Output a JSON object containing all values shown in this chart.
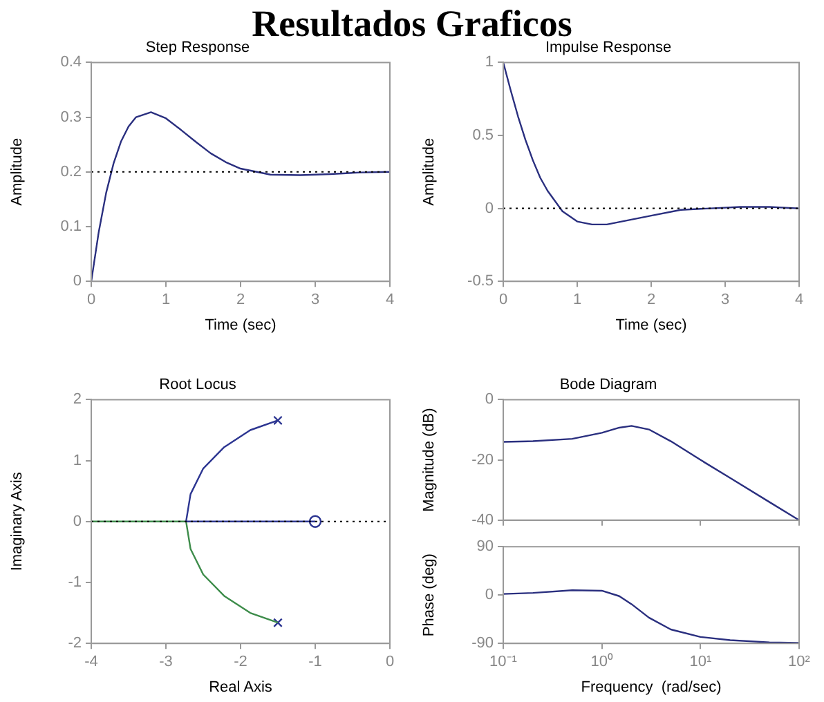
{
  "chart_data": [
    {
      "type": "line",
      "title": "Step Response",
      "xlabel": "Time (sec)",
      "ylabel": "Amplitude",
      "annotations": [
        "Resultados Graficos"
      ],
      "xlim": [
        0,
        4
      ],
      "xticks": [
        0,
        1,
        2,
        3,
        4
      ],
      "ylim": [
        0,
        0.4
      ],
      "yticks": [
        0,
        0.1,
        0.2,
        0.3,
        0.4
      ],
      "x": [
        0,
        0.1,
        0.2,
        0.3,
        0.4,
        0.5,
        0.6,
        0.8,
        1,
        1.2,
        1.4,
        1.6,
        1.8,
        2,
        2.4,
        2.8,
        3.2,
        3.6,
        4
      ],
      "series": [
        {
          "color": "#2a2f7f",
          "values": [
            0,
            0.09,
            0.162,
            0.216,
            0.256,
            0.283,
            0.3,
            0.309,
            0.298,
            0.277,
            0.255,
            0.234,
            0.218,
            0.206,
            0.195,
            0.194,
            0.196,
            0.199,
            0.2
          ]
        }
      ],
      "ref_lines": [
        {
          "axis": "y",
          "value": 0.2,
          "color": "#000000",
          "line_style": "dotted"
        }
      ],
      "grid": false,
      "legend": false,
      "marker": "none"
    },
    {
      "type": "line",
      "title": "Impulse Response",
      "xlabel": "Time (sec)",
      "ylabel": "Amplitude",
      "xlim": [
        0,
        4
      ],
      "xticks": [
        0,
        1,
        2,
        3,
        4
      ],
      "ylim": [
        -0.5,
        1
      ],
      "yticks": [
        -0.5,
        0,
        0.5,
        1
      ],
      "x": [
        0,
        0.1,
        0.2,
        0.3,
        0.4,
        0.5,
        0.6,
        0.8,
        1,
        1.2,
        1.4,
        1.6,
        1.8,
        2,
        2.4,
        2.8,
        3.2,
        3.6,
        4
      ],
      "series": [
        {
          "color": "#2a2f7f",
          "values": [
            1,
            0.81,
            0.63,
            0.47,
            0.33,
            0.21,
            0.12,
            -0.02,
            -0.09,
            -0.11,
            -0.11,
            -0.09,
            -0.07,
            -0.05,
            -0.01,
            0,
            0.01,
            0.01,
            0
          ]
        }
      ],
      "ref_lines": [
        {
          "axis": "y",
          "value": 0,
          "color": "#000000",
          "line_style": "dotted"
        }
      ],
      "grid": false,
      "legend": false,
      "marker": "none"
    },
    {
      "type": "line",
      "title": "Root Locus",
      "xlabel": "Real Axis",
      "ylabel": "Imaginary Axis",
      "xlim": [
        -4,
        0
      ],
      "xticks": [
        -4,
        -3,
        -2,
        -1,
        0
      ],
      "ylim": [
        -2,
        2
      ],
      "yticks": [
        -2,
        -1,
        0,
        1,
        2
      ],
      "series": [
        {
          "color": "#2c3591",
          "x": [
            -1.5,
            -1.87,
            -2.22,
            -2.5,
            -2.67,
            -2.73,
            -1
          ],
          "values": [
            1.66,
            1.5,
            1.22,
            0.87,
            0.45,
            0,
            0
          ]
        },
        {
          "color": "#3d8c4a",
          "x": [
            -1.5,
            -1.87,
            -2.22,
            -2.5,
            -2.67,
            -2.73,
            -4
          ],
          "values": [
            -1.66,
            -1.5,
            -1.22,
            -0.87,
            -0.45,
            0,
            0
          ]
        },
        {
          "type": "scatter",
          "marker": "cross",
          "color": "#2c3591",
          "x": [
            -1.5,
            -1.5
          ],
          "values": [
            1.66,
            -1.66
          ]
        },
        {
          "type": "scatter",
          "marker": "circle",
          "color": "#2c3591",
          "x": [
            -1
          ],
          "values": [
            0
          ]
        }
      ],
      "ref_lines": [
        {
          "axis": "y",
          "value": 0,
          "color": "#000000",
          "line_style": "dotted"
        }
      ],
      "grid": false,
      "legend": false,
      "marker": "none"
    },
    {
      "type": "line",
      "title": "Bode Diagram",
      "ylabel": "Magnitude (dB)",
      "log": "x",
      "tick_labels": "y",
      "xlim": [
        0.1,
        100
      ],
      "xticks": [
        0.1,
        1,
        10,
        100
      ],
      "ylim": [
        -40,
        0
      ],
      "yticks": [
        -40,
        -20,
        0
      ],
      "x": [
        0.1,
        0.2,
        0.5,
        1,
        1.5,
        2,
        3,
        5,
        10,
        20,
        50,
        100
      ],
      "series": [
        {
          "color": "#2a2f7f",
          "values": [
            -14,
            -13.8,
            -13,
            -11,
            -9.3,
            -8.7,
            -9.9,
            -13.8,
            -20,
            -26,
            -34,
            -40
          ]
        }
      ],
      "grid": false,
      "legend": false,
      "marker": "none"
    },
    {
      "type": "line",
      "xlabel": "Frequency  (rad/sec)",
      "ylabel": "Phase (deg)",
      "log": "x",
      "xlim": [
        0.1,
        100
      ],
      "xticks": [
        {
          "value": 0.1,
          "label": "10⁻¹"
        },
        {
          "value": 1,
          "label": "10⁰"
        },
        {
          "value": 10,
          "label": "10¹"
        },
        {
          "value": 100,
          "label": "10²"
        }
      ],
      "ylim": [
        -90,
        90
      ],
      "yticks": [
        -90,
        0,
        90
      ],
      "x": [
        0.1,
        0.2,
        0.5,
        1,
        1.5,
        2,
        3,
        5,
        10,
        20,
        50,
        100
      ],
      "series": [
        {
          "color": "#2a2f7f",
          "values": [
            2,
            4,
            9,
            8,
            -2,
            -17,
            -42,
            -64,
            -78,
            -84,
            -88,
            -89
          ]
        }
      ],
      "grid": false,
      "legend": false,
      "marker": "none"
    }
  ]
}
